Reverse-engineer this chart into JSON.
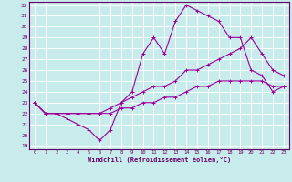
{
  "xlabel": "Windchill (Refroidissement éolien,°C)",
  "xlim": [
    -0.5,
    23.5
  ],
  "ylim": [
    18.7,
    32.3
  ],
  "xticks": [
    0,
    1,
    2,
    3,
    4,
    5,
    6,
    7,
    8,
    9,
    10,
    11,
    12,
    13,
    14,
    15,
    16,
    17,
    18,
    19,
    20,
    21,
    22,
    23
  ],
  "yticks": [
    19,
    20,
    21,
    22,
    23,
    24,
    25,
    26,
    27,
    28,
    29,
    30,
    31,
    32
  ],
  "bg_color": "#c8ecec",
  "grid_color": "#ffffff",
  "line_color": "#990099",
  "line1_x": [
    0,
    1,
    2,
    3,
    4,
    5,
    6,
    7,
    8,
    9,
    10,
    11,
    12,
    13,
    14,
    15,
    16,
    17,
    18,
    19,
    20,
    21,
    22,
    23
  ],
  "line1_y": [
    23,
    22,
    22,
    21.5,
    21,
    20.5,
    19.5,
    20.5,
    23,
    24,
    27.5,
    29,
    27.5,
    30.5,
    32,
    31.5,
    31,
    30.5,
    29,
    29,
    26,
    25.5,
    24,
    24.5
  ],
  "line2_x": [
    0,
    1,
    2,
    3,
    4,
    5,
    6,
    7,
    8,
    9,
    10,
    11,
    12,
    13,
    14,
    15,
    16,
    17,
    18,
    19,
    20,
    21,
    22,
    23
  ],
  "line2_y": [
    23,
    22,
    22,
    22,
    22,
    22,
    22,
    22.5,
    23,
    23.5,
    24,
    24.5,
    24.5,
    25,
    26,
    26,
    26.5,
    27,
    27.5,
    28,
    29,
    27.5,
    26,
    25.5
  ],
  "line3_x": [
    0,
    1,
    2,
    3,
    4,
    5,
    6,
    7,
    8,
    9,
    10,
    11,
    12,
    13,
    14,
    15,
    16,
    17,
    18,
    19,
    20,
    21,
    22,
    23
  ],
  "line3_y": [
    23,
    22,
    22,
    22,
    22,
    22,
    22,
    22,
    22.5,
    22.5,
    23,
    23,
    23.5,
    23.5,
    24,
    24.5,
    24.5,
    25,
    25,
    25,
    25,
    25,
    24.5,
    24.5
  ]
}
